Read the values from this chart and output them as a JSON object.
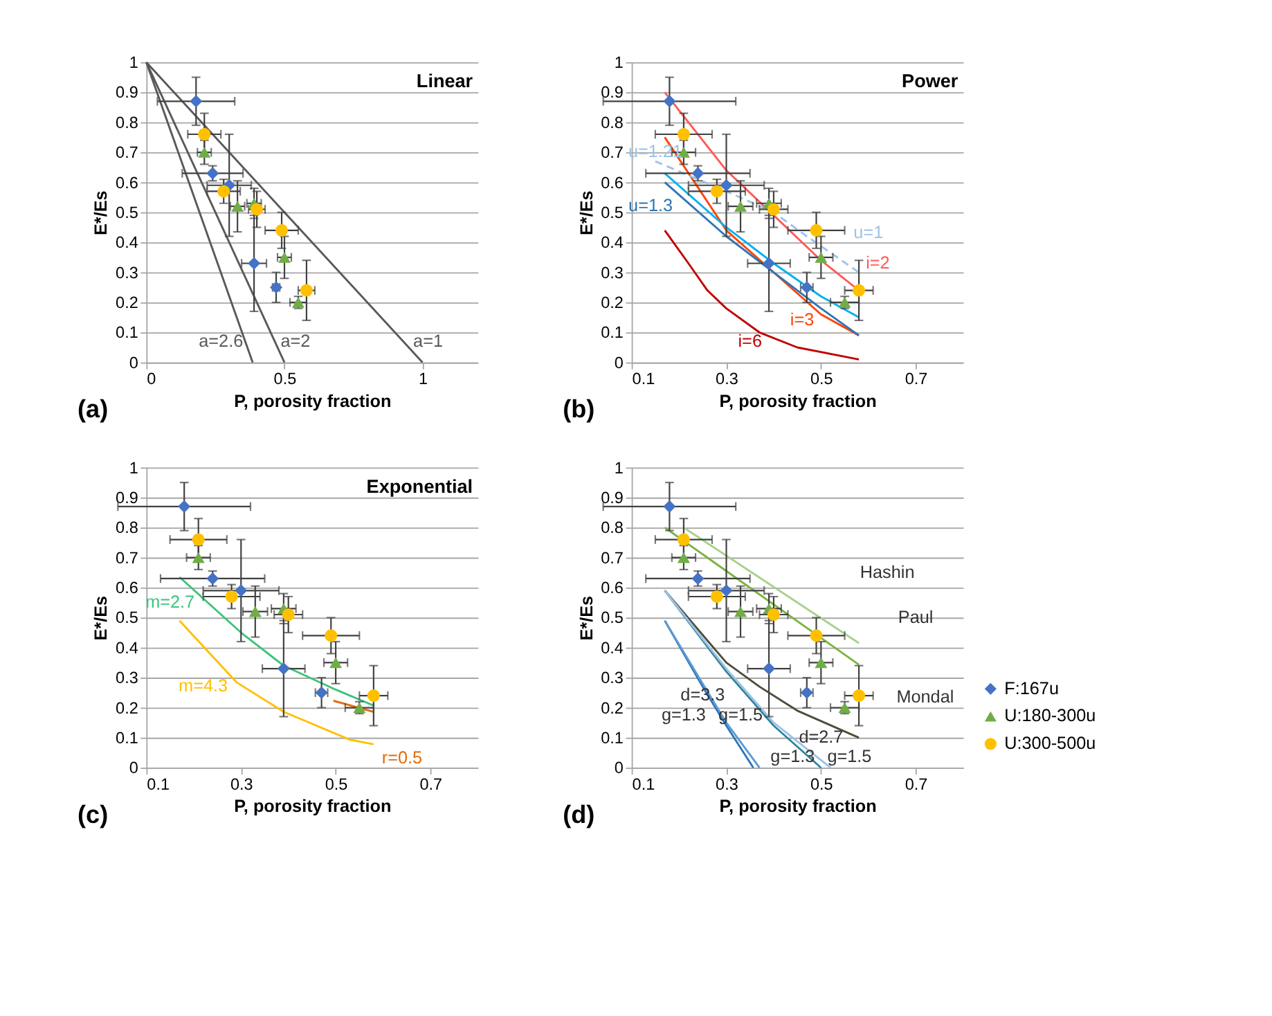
{
  "chart_data": [
    {
      "type": "scatter",
      "title": "Linear",
      "xlabel": "P, porosity fraction",
      "ylabel": "E*/Es",
      "xlim": [
        0,
        1.2
      ],
      "xticks": [
        0,
        0.5,
        1
      ],
      "ylim": [
        0,
        1
      ],
      "yticks": [
        0,
        0.1,
        0.2,
        0.3,
        0.4,
        0.5,
        0.6,
        0.7,
        0.8,
        0.9,
        1
      ],
      "grid": "y",
      "legend": false,
      "annotations": [
        "(a)",
        "a=2.6",
        "a=2",
        "a=1"
      ],
      "series": [
        {
          "type": "line",
          "color": "#595959",
          "x": [
            0,
            1
          ],
          "values": [
            1,
            0
          ]
        },
        {
          "type": "line",
          "color": "#595959",
          "x": [
            0,
            0.5
          ],
          "values": [
            1,
            0
          ]
        },
        {
          "type": "line",
          "color": "#595959",
          "x": [
            0,
            0.385
          ],
          "values": [
            1,
            0
          ]
        },
        {
          "color": "#4472c4",
          "marker": "diamond",
          "x": [
            0.18,
            0.24,
            0.3,
            0.39,
            0.47
          ],
          "values": [
            0.87,
            0.63,
            0.59,
            0.33,
            0.25
          ],
          "errors": [
            0.08,
            0.025,
            0.17,
            0.16,
            0.05
          ],
          "xerrors": [
            0.14,
            0.11,
            0.08,
            0.045,
            0.013
          ]
        },
        {
          "color": "#70ad47",
          "marker": "triangle",
          "x": [
            0.21,
            0.33,
            0.39,
            0.5,
            0.55
          ],
          "values": [
            0.7,
            0.52,
            0.53,
            0.35,
            0.2
          ],
          "errors": [
            0.04,
            0.085,
            0.05,
            0.07,
            0.02
          ],
          "xerrors": [
            0.025,
            0.026,
            0.026,
            0.025,
            0.03
          ]
        },
        {
          "color": "#ffc000",
          "marker": "circle",
          "x": [
            0.21,
            0.28,
            0.4,
            0.49,
            0.58
          ],
          "values": [
            0.76,
            0.57,
            0.51,
            0.44,
            0.24
          ],
          "errors": [
            0.07,
            0.04,
            0.06,
            0.06,
            0.1
          ],
          "xerrors": [
            0.06,
            0.06,
            0.03,
            0.06,
            0.03
          ]
        }
      ]
    },
    {
      "type": "scatter",
      "title": "Power",
      "xlabel": "P, porosity fraction",
      "ylabel": "E*/Es",
      "xlim": [
        0.1,
        0.8
      ],
      "xticks": [
        0.1,
        0.3,
        0.5,
        0.7
      ],
      "ylim": [
        0,
        1
      ],
      "yticks": [
        0,
        0.1,
        0.2,
        0.3,
        0.4,
        0.5,
        0.6,
        0.7,
        0.8,
        0.9,
        1
      ],
      "grid": "y",
      "legend": false,
      "annotations": [
        "(b)",
        "u=1.21",
        "u=1.3",
        "u=1",
        "i=2",
        "i=3",
        "i=6"
      ],
      "series": [
        {
          "type": "line",
          "color": "#ff5a5a",
          "x": [
            0.17,
            0.3,
            0.4,
            0.5,
            0.58
          ],
          "values": [
            0.9,
            0.64,
            0.49,
            0.34,
            0.24
          ]
        },
        {
          "type": "line",
          "color": "#ff4500",
          "x": [
            0.17,
            0.3,
            0.4,
            0.5,
            0.58
          ],
          "values": [
            0.75,
            0.44,
            0.3,
            0.16,
            0.09
          ]
        },
        {
          "type": "line",
          "color": "#c00000",
          "x": [
            0.17,
            0.22,
            0.26,
            0.3,
            0.37,
            0.45,
            0.58
          ],
          "values": [
            0.44,
            0.33,
            0.24,
            0.18,
            0.1,
            0.05,
            0.01
          ]
        },
        {
          "type": "line",
          "color": "#9dc3e6",
          "line_style": "dashed",
          "x": [
            0.15,
            0.3,
            0.4,
            0.47,
            0.58
          ],
          "values": [
            0.67,
            0.57,
            0.5,
            0.42,
            0.3
          ]
        },
        {
          "type": "line",
          "color": "#00b0f0",
          "x": [
            0.17,
            0.3,
            0.4,
            0.5,
            0.58
          ],
          "values": [
            0.63,
            0.45,
            0.33,
            0.22,
            0.15
          ]
        },
        {
          "type": "line",
          "color": "#2e75b6",
          "x": [
            0.17,
            0.3,
            0.4,
            0.5,
            0.58
          ],
          "values": [
            0.6,
            0.42,
            0.3,
            0.18,
            0.09
          ]
        },
        {
          "color": "#4472c4",
          "marker": "diamond",
          "x": [
            0.18,
            0.24,
            0.3,
            0.39,
            0.47
          ],
          "values": [
            0.87,
            0.63,
            0.59,
            0.33,
            0.25
          ],
          "errors": [
            0.08,
            0.025,
            0.17,
            0.16,
            0.05
          ],
          "xerrors": [
            0.14,
            0.11,
            0.08,
            0.045,
            0.013
          ]
        },
        {
          "color": "#70ad47",
          "marker": "triangle",
          "x": [
            0.21,
            0.33,
            0.39,
            0.5,
            0.55
          ],
          "values": [
            0.7,
            0.52,
            0.53,
            0.35,
            0.2
          ],
          "errors": [
            0.04,
            0.085,
            0.05,
            0.07,
            0.02
          ],
          "xerrors": [
            0.025,
            0.026,
            0.026,
            0.025,
            0.03
          ]
        },
        {
          "color": "#ffc000",
          "marker": "circle",
          "x": [
            0.21,
            0.28,
            0.4,
            0.49,
            0.58
          ],
          "values": [
            0.76,
            0.57,
            0.51,
            0.44,
            0.24
          ],
          "errors": [
            0.07,
            0.04,
            0.06,
            0.06,
            0.1
          ],
          "xerrors": [
            0.06,
            0.06,
            0.03,
            0.06,
            0.03
          ]
        }
      ]
    },
    {
      "type": "scatter",
      "title": "Exponential",
      "xlabel": "P, porosity fraction",
      "ylabel": "E*/Es",
      "xlim": [
        0.1,
        0.8
      ],
      "xticks": [
        0.1,
        0.3,
        0.5,
        0.7
      ],
      "ylim": [
        0,
        1
      ],
      "yticks": [
        0,
        0.1,
        0.2,
        0.3,
        0.4,
        0.5,
        0.6,
        0.7,
        0.8,
        0.9,
        1
      ],
      "grid": "y",
      "legend": false,
      "annotations": [
        "(c)",
        "m=2.7",
        "m=4.3",
        "r=0.5"
      ],
      "series": [
        {
          "type": "line",
          "color": "#3cc47c",
          "x": [
            0.17,
            0.3,
            0.39,
            0.5,
            0.58
          ],
          "values": [
            0.635,
            0.45,
            0.34,
            0.26,
            0.207
          ]
        },
        {
          "type": "line",
          "color": "#ffc000",
          "x": [
            0.17,
            0.29,
            0.39,
            0.53,
            0.58
          ],
          "values": [
            0.49,
            0.285,
            0.186,
            0.093,
            0.078
          ]
        },
        {
          "type": "line",
          "color": "#e36c09",
          "x": [
            0.495,
            0.58
          ],
          "values": [
            0.223,
            0.186
          ]
        },
        {
          "color": "#4472c4",
          "marker": "diamond",
          "x": [
            0.18,
            0.24,
            0.3,
            0.39,
            0.47
          ],
          "values": [
            0.87,
            0.63,
            0.59,
            0.33,
            0.25
          ],
          "errors": [
            0.08,
            0.025,
            0.17,
            0.16,
            0.05
          ],
          "xerrors": [
            0.14,
            0.11,
            0.08,
            0.045,
            0.013
          ]
        },
        {
          "color": "#70ad47",
          "marker": "triangle",
          "x": [
            0.21,
            0.33,
            0.39,
            0.5,
            0.55
          ],
          "values": [
            0.7,
            0.52,
            0.53,
            0.35,
            0.2
          ],
          "errors": [
            0.04,
            0.085,
            0.05,
            0.07,
            0.02
          ],
          "xerrors": [
            0.025,
            0.026,
            0.026,
            0.025,
            0.03
          ]
        },
        {
          "color": "#ffc000",
          "marker": "circle",
          "x": [
            0.21,
            0.28,
            0.4,
            0.49,
            0.58
          ],
          "values": [
            0.76,
            0.57,
            0.51,
            0.44,
            0.24
          ],
          "errors": [
            0.07,
            0.04,
            0.06,
            0.06,
            0.1
          ],
          "xerrors": [
            0.06,
            0.06,
            0.03,
            0.06,
            0.03
          ]
        }
      ]
    },
    {
      "type": "scatter",
      "xlabel": "P, porosity fraction",
      "ylabel": "E*/Es",
      "xlim": [
        0.1,
        0.8
      ],
      "xticks": [
        0.1,
        0.3,
        0.5,
        0.7
      ],
      "ylim": [
        0,
        1
      ],
      "yticks": [
        0,
        0.1,
        0.2,
        0.3,
        0.4,
        0.5,
        0.6,
        0.7,
        0.8,
        0.9,
        1
      ],
      "grid": "y",
      "legend": "bottom right",
      "annotations": [
        "(d)",
        "Hashin",
        "Paul",
        "Mondal",
        "d=3.3",
        "g=1.3",
        "g=1.5",
        "d=2.7",
        "g=1.3",
        "g=1.5"
      ],
      "series": [
        {
          "type": "line",
          "color": "#a9d18e",
          "x": [
            0.21,
            0.58
          ],
          "values": [
            0.8,
            0.415
          ]
        },
        {
          "type": "line",
          "color": "#7cb342",
          "x": [
            0.17,
            0.58
          ],
          "values": [
            0.8,
            0.343
          ]
        },
        {
          "type": "line",
          "color": "#4d4d3a",
          "x": [
            0.17,
            0.3,
            0.37,
            0.45,
            0.58
          ],
          "values": [
            0.59,
            0.35,
            0.27,
            0.19,
            0.1
          ]
        },
        {
          "type": "line",
          "color": "#2e75b6",
          "x": [
            0.17,
            0.25,
            0.3,
            0.357
          ],
          "values": [
            0.49,
            0.27,
            0.14,
            0
          ]
        },
        {
          "type": "line",
          "color": "#5b9bd5",
          "x": [
            0.17,
            0.25,
            0.3,
            0.37
          ],
          "values": [
            0.49,
            0.28,
            0.15,
            0
          ]
        },
        {
          "type": "line",
          "color": "#31859c",
          "x": [
            0.17,
            0.3,
            0.4,
            0.5
          ],
          "values": [
            0.59,
            0.32,
            0.14,
            0
          ]
        },
        {
          "type": "line",
          "color": "#9dc3e6",
          "x": [
            0.17,
            0.3,
            0.4,
            0.52
          ],
          "values": [
            0.59,
            0.33,
            0.15,
            0
          ]
        },
        {
          "name": "F:167u",
          "color": "#4472c4",
          "marker": "diamond",
          "x": [
            0.18,
            0.24,
            0.3,
            0.39,
            0.47
          ],
          "values": [
            0.87,
            0.63,
            0.59,
            0.33,
            0.25
          ],
          "errors": [
            0.08,
            0.025,
            0.17,
            0.16,
            0.05
          ],
          "xerrors": [
            0.14,
            0.11,
            0.08,
            0.045,
            0.013
          ]
        },
        {
          "name": "U:180-300u",
          "color": "#70ad47",
          "marker": "triangle",
          "x": [
            0.21,
            0.33,
            0.39,
            0.5,
            0.55
          ],
          "values": [
            0.7,
            0.52,
            0.53,
            0.35,
            0.2
          ],
          "errors": [
            0.04,
            0.085,
            0.05,
            0.07,
            0.02
          ],
          "xerrors": [
            0.025,
            0.026,
            0.026,
            0.025,
            0.03
          ]
        },
        {
          "name": "U:300-500u",
          "color": "#ffc000",
          "marker": "circle",
          "x": [
            0.21,
            0.28,
            0.4,
            0.49,
            0.58
          ],
          "values": [
            0.76,
            0.57,
            0.51,
            0.44,
            0.24
          ],
          "errors": [
            0.07,
            0.04,
            0.06,
            0.06,
            0.1
          ],
          "xerrors": [
            0.06,
            0.06,
            0.03,
            0.06,
            0.03
          ]
        }
      ]
    }
  ]
}
